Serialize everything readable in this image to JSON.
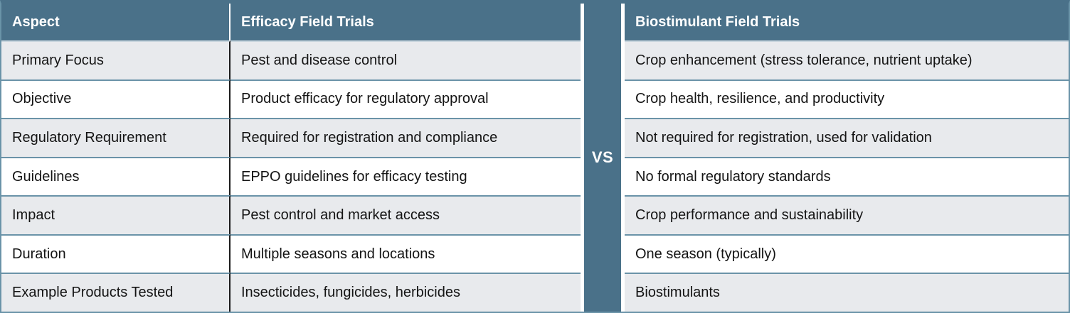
{
  "table": {
    "headers": {
      "aspect": "Aspect",
      "efficacy": "Efficacy Field Trials",
      "biostimulant": "Biostimulant Field Trials"
    },
    "vs_label": "VS",
    "rows": [
      {
        "aspect": "Primary Focus",
        "efficacy": "Pest and disease control",
        "biostimulant": "Crop enhancement (stress tolerance, nutrient uptake)"
      },
      {
        "aspect": "Objective",
        "efficacy": "Product efficacy for regulatory approval",
        "biostimulant": "Crop health, resilience, and productivity"
      },
      {
        "aspect": "Regulatory Requirement",
        "efficacy": "Required for registration and compliance",
        "biostimulant": "Not required for registration, used for validation"
      },
      {
        "aspect": "Guidelines",
        "efficacy": "EPPO guidelines for efficacy testing",
        "biostimulant": "No formal regulatory standards"
      },
      {
        "aspect": "Impact",
        "efficacy": "Pest control and market access",
        "biostimulant": "Crop performance and sustainability"
      },
      {
        "aspect": "Duration",
        "efficacy": "Multiple seasons and locations",
        "biostimulant": "One season (typically)"
      },
      {
        "aspect": "Example Products Tested",
        "efficacy": "Insecticides, fungicides, herbicides",
        "biostimulant": "Biostimulants"
      }
    ]
  },
  "colors": {
    "header_bg": "#4a7189",
    "vs_column_bg": "#4a7189",
    "row_alt_bg": "#e8eaed",
    "row_bg": "#ffffff",
    "row_separator": "#6a93a8",
    "under_header_line": "#c9d6de",
    "aspect_column_rule": "#1c1c1c",
    "header_text": "#ffffff",
    "body_text": "#141414"
  }
}
